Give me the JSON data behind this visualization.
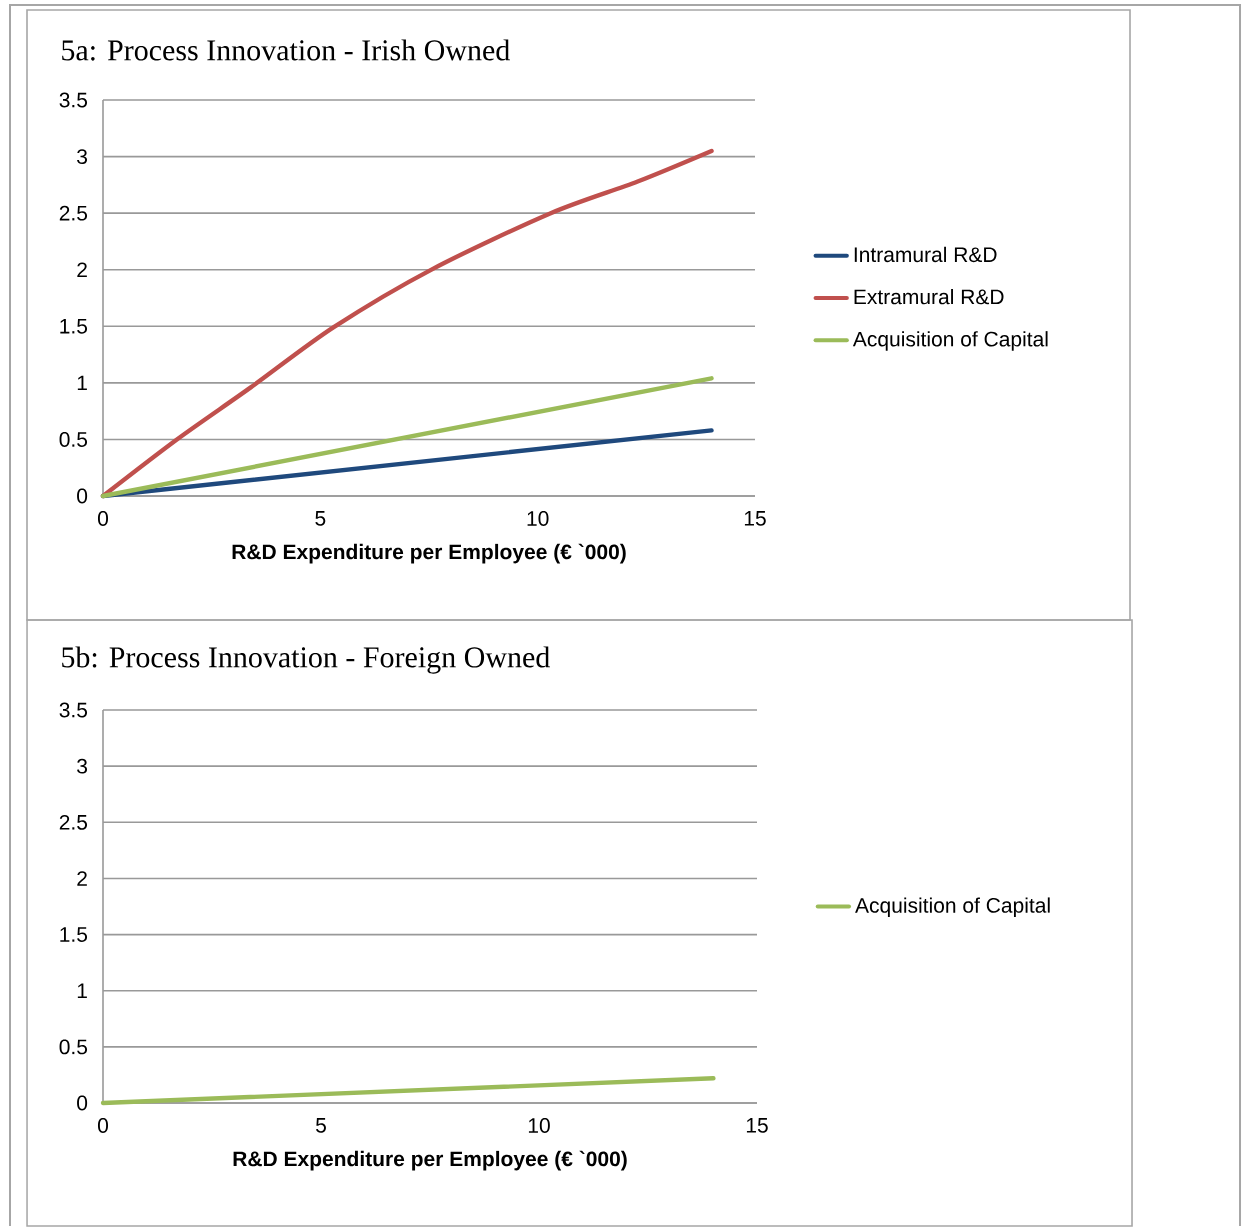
{
  "chart_data": [
    {
      "type": "line",
      "title": "5a: Process Innovation - Irish Owned",
      "xlabel": "R&D Expenditure per Employee (€ `000)",
      "xlim": [
        0,
        15
      ],
      "xticks": [
        0,
        5,
        10,
        15
      ],
      "ylim": [
        0,
        3.5
      ],
      "yticks": [
        0,
        0.5,
        1,
        1.5,
        2,
        2.5,
        3,
        3.5
      ],
      "grid": "y",
      "legend": "right",
      "marker": "none",
      "line_style": "solid",
      "series": [
        {
          "name": "Intramural R&D",
          "color": "#1f497d",
          "x": [
            0,
            14
          ],
          "values": [
            0,
            0.58
          ]
        },
        {
          "name": "Extramural R&D",
          "color": "#c0504d",
          "x": [
            0,
            1.7,
            3.4,
            5.3,
            7.6,
            10.3,
            12.3,
            14
          ],
          "values": [
            0,
            0.5,
            0.96,
            1.49,
            2.01,
            2.5,
            2.78,
            3.05
          ]
        },
        {
          "name": "Acquisition  of Capital",
          "color": "#9bbb59",
          "x": [
            0,
            14
          ],
          "values": [
            0,
            1.04
          ]
        }
      ]
    },
    {
      "type": "line",
      "title": "5b: Process Innovation -  Foreign Owned",
      "xlabel": "R&D Expenditure per Employee (€ `000)",
      "xlim": [
        0,
        15
      ],
      "xticks": [
        0,
        5,
        10,
        15
      ],
      "ylim": [
        0,
        3.5
      ],
      "yticks": [
        0,
        0.5,
        1,
        1.5,
        2,
        2.5,
        3,
        3.5
      ],
      "grid": "y",
      "legend": "right",
      "marker": "none",
      "line_style": "solid",
      "series": [
        {
          "name": "Acquisition  of Capital",
          "color": "#9bbb59",
          "x": [
            0,
            14
          ],
          "values": [
            0,
            0.22
          ]
        }
      ]
    }
  ]
}
